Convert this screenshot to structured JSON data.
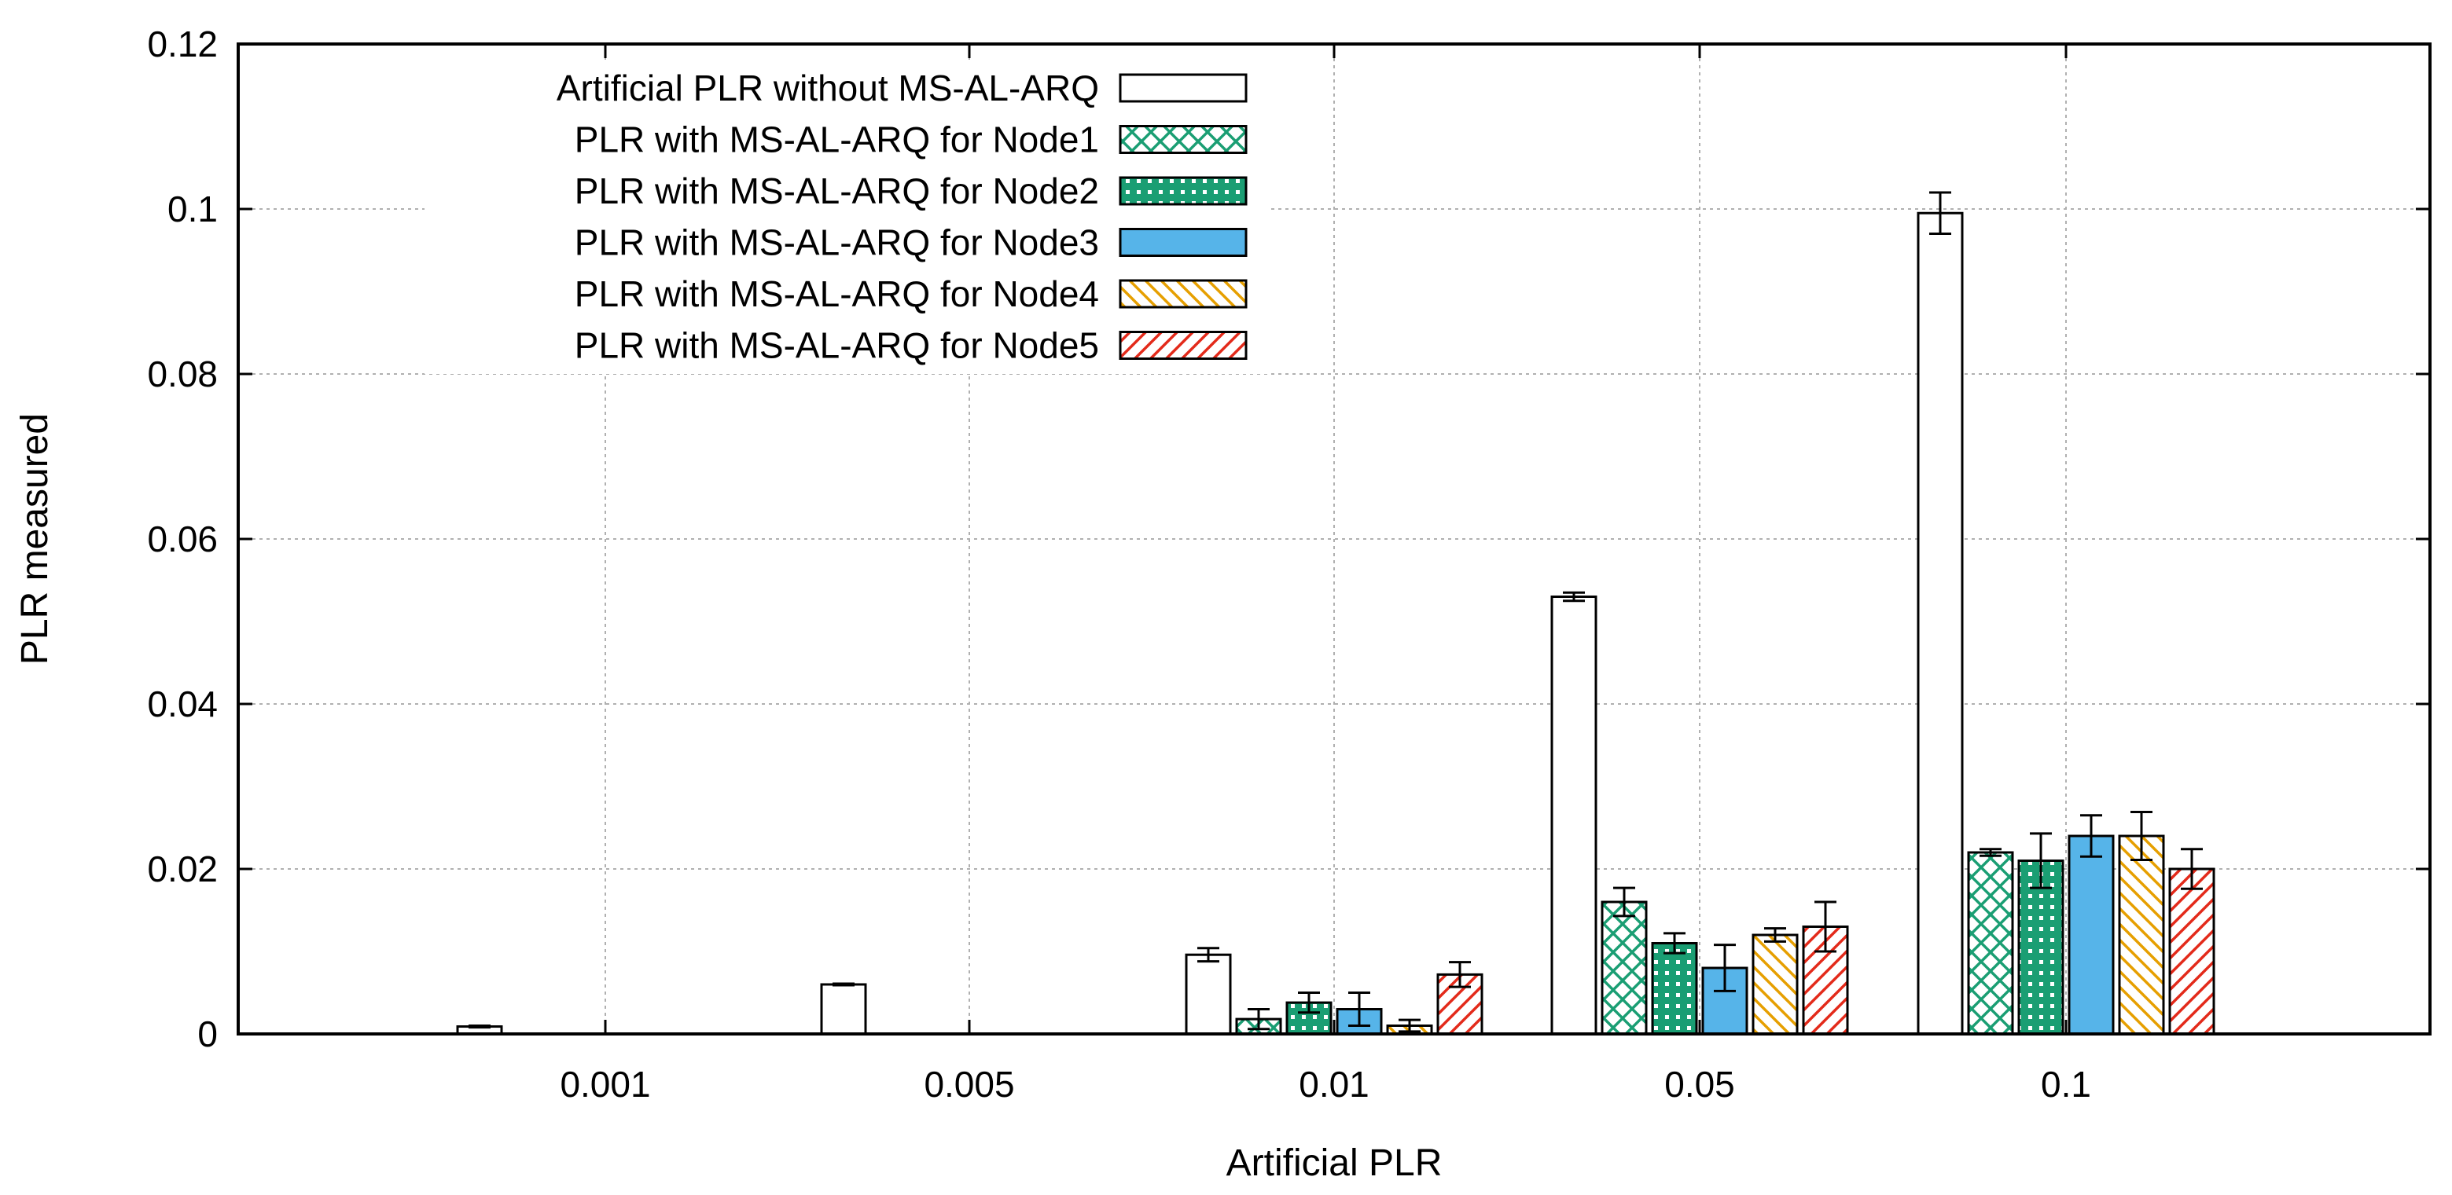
{
  "chart_data": {
    "type": "bar",
    "title": "",
    "xlabel": "Artificial PLR",
    "ylabel": "PLR measured",
    "ylim": [
      0,
      0.12
    ],
    "yticks": [
      "0",
      "0.02",
      "0.04",
      "0.06",
      "0.08",
      "0.1",
      "0.12"
    ],
    "categories": [
      "0.001",
      "0.005",
      "0.01",
      "0.05",
      "0.1"
    ],
    "grid": true,
    "legend_position": "top-left",
    "series": [
      {
        "name": "Artificial PLR without MS-AL-ARQ",
        "pattern": "empty",
        "color": "#000000",
        "values": [
          0.0009,
          0.006,
          0.0096,
          0.053,
          0.0995
        ],
        "errors": [
          0.0001,
          0.0001,
          0.0008,
          0.0005,
          0.0025
        ]
      },
      {
        "name": "PLR with MS-AL-ARQ for Node1",
        "pattern": "crosshatch",
        "color": "#1a9e73",
        "values": [
          0,
          0,
          0.0018,
          0.016,
          0.022
        ],
        "errors": [
          0,
          0,
          0.0012,
          0.0017,
          0.0004
        ]
      },
      {
        "name": "PLR with MS-AL-ARQ for Node2",
        "pattern": "dotted",
        "color": "#1a9e73",
        "values": [
          0,
          0,
          0.0038,
          0.011,
          0.021
        ],
        "errors": [
          0,
          0,
          0.0012,
          0.0012,
          0.0033
        ]
      },
      {
        "name": "PLR with MS-AL-ARQ for Node3",
        "pattern": "solid",
        "color": "#56b4e9",
        "values": [
          0,
          0,
          0.003,
          0.008,
          0.024
        ],
        "errors": [
          0,
          0,
          0.002,
          0.0028,
          0.0025
        ]
      },
      {
        "name": "PLR with MS-AL-ARQ for Node4",
        "pattern": "hatch-down",
        "color": "#e69f00",
        "values": [
          0,
          0,
          0.001,
          0.012,
          0.024
        ],
        "errors": [
          0,
          0,
          0.0007,
          0.0008,
          0.0029
        ]
      },
      {
        "name": "PLR with MS-AL-ARQ for Node5",
        "pattern": "hatch-up",
        "color": "#e32a1a",
        "values": [
          0,
          0,
          0.0072,
          0.013,
          0.02
        ],
        "errors": [
          0,
          0,
          0.0015,
          0.003,
          0.0024
        ]
      }
    ]
  }
}
